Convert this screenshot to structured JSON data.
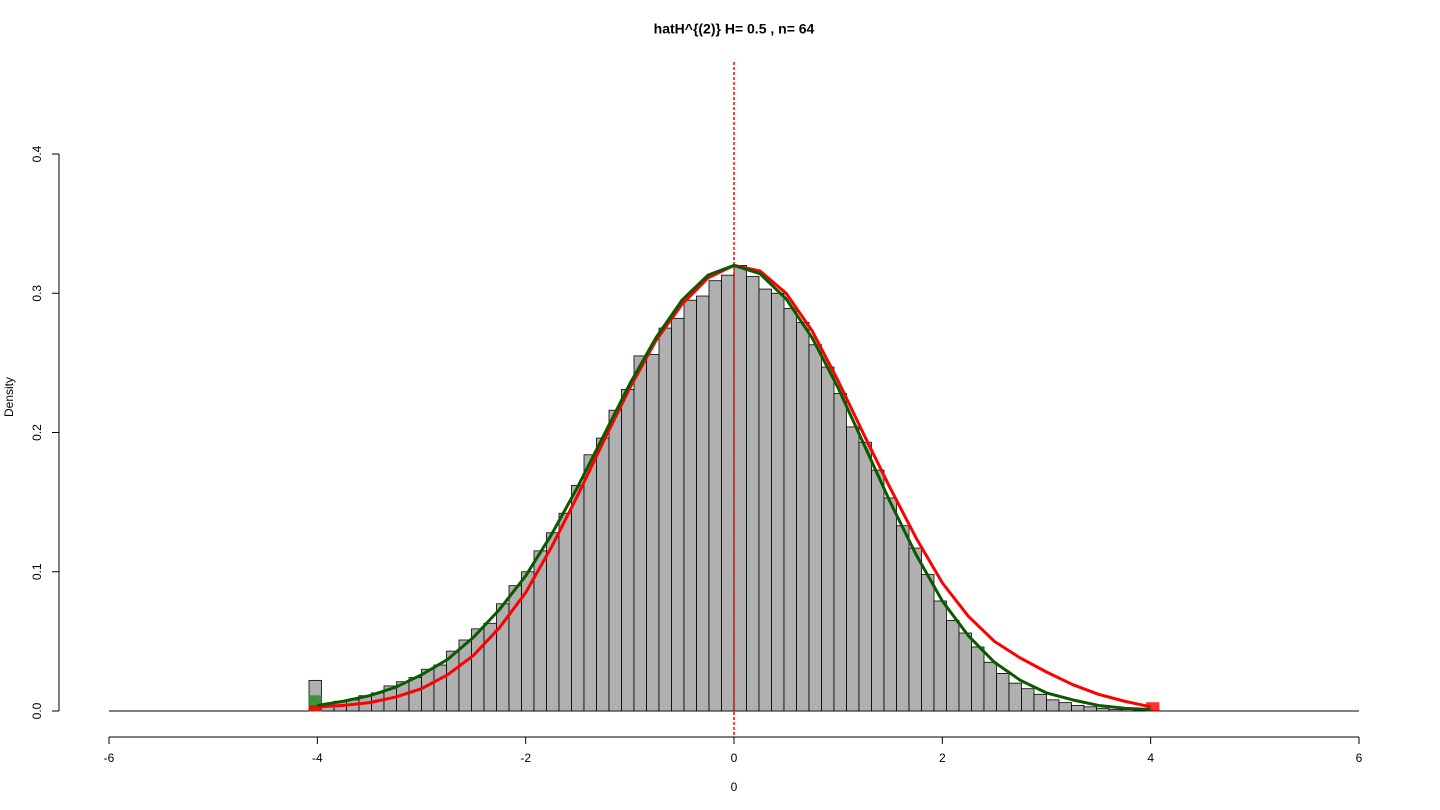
{
  "chart_data": {
    "type": "histogram",
    "title": "hatH^{(2)} H= 0.5 , n= 64",
    "xlabel": "0",
    "ylabel": "Density",
    "color": "#b0b0b0",
    "bins": [
      -4.08,
      -3.96,
      -3.84,
      -3.72,
      -3.6,
      -3.48,
      -3.36,
      -3.24,
      -3.12,
      -3.0,
      -2.88,
      -2.76,
      -2.64,
      -2.52,
      -2.4,
      -2.28,
      -2.16,
      -2.04,
      -1.92,
      -1.8,
      -1.68,
      -1.56,
      -1.44,
      -1.32,
      -1.2,
      -1.08,
      -0.96,
      -0.84,
      -0.72,
      -0.6,
      -0.48,
      -0.36,
      -0.24,
      -0.12,
      0.0,
      0.12,
      0.24,
      0.36,
      0.48,
      0.6,
      0.72,
      0.84,
      0.96,
      1.08,
      1.2,
      1.32,
      1.44,
      1.56,
      1.68,
      1.8,
      1.92,
      2.04,
      2.16,
      2.28,
      2.4,
      2.52,
      2.64,
      2.76,
      2.88,
      3.0,
      3.12,
      3.24,
      3.36,
      3.48,
      3.6,
      3.72,
      3.84,
      3.96,
      4.08
    ],
    "values": [
      0.022,
      0.004,
      0.007,
      0.008,
      0.011,
      0.013,
      0.018,
      0.021,
      0.024,
      0.03,
      0.033,
      0.043,
      0.051,
      0.059,
      0.063,
      0.077,
      0.09,
      0.1,
      0.115,
      0.128,
      0.142,
      0.162,
      0.184,
      0.196,
      0.216,
      0.231,
      0.255,
      0.256,
      0.275,
      0.282,
      0.295,
      0.298,
      0.309,
      0.313,
      0.32,
      0.312,
      0.303,
      0.3,
      0.289,
      0.279,
      0.263,
      0.247,
      0.228,
      0.204,
      0.193,
      0.173,
      0.153,
      0.133,
      0.117,
      0.098,
      0.079,
      0.065,
      0.056,
      0.046,
      0.035,
      0.027,
      0.02,
      0.016,
      0.012,
      0.008,
      0.006,
      0.004,
      0.003,
      0.002,
      0.001,
      0.001,
      0.0005,
      0.0005
    ],
    "tail_bars": [
      {
        "color": "#228b22",
        "bins": [
          -4.08,
          -3.96
        ],
        "values": [
          0.011
        ]
      },
      {
        "color": "#ff0000",
        "bins": [
          -4.08,
          -3.96
        ],
        "values": [
          0.004
        ]
      },
      {
        "color": "#ff0000",
        "bins": [
          3.96,
          4.08
        ],
        "values": [
          0.006
        ]
      }
    ],
    "series": [
      {
        "color": "#ff0000",
        "x": [
          -4,
          -3.75,
          -3.5,
          -3.25,
          -3,
          -2.75,
          -2.5,
          -2.25,
          -2,
          -1.75,
          -1.5,
          -1.25,
          -1,
          -0.75,
          -0.5,
          -0.25,
          0,
          0.25,
          0.5,
          0.75,
          1,
          1.25,
          1.5,
          1.75,
          2,
          2.25,
          2.5,
          2.75,
          3,
          3.25,
          3.5,
          3.75,
          4
        ],
        "values": [
          0.003,
          0.004,
          0.006,
          0.01,
          0.016,
          0.026,
          0.04,
          0.06,
          0.085,
          0.118,
          0.155,
          0.194,
          0.232,
          0.266,
          0.292,
          0.311,
          0.32,
          0.316,
          0.3,
          0.273,
          0.237,
          0.198,
          0.16,
          0.124,
          0.092,
          0.068,
          0.05,
          0.038,
          0.028,
          0.019,
          0.012,
          0.007,
          0.003
        ]
      },
      {
        "color": "#0b5a00",
        "x": [
          -4,
          -3.75,
          -3.5,
          -3.25,
          -3,
          -2.75,
          -2.5,
          -2.25,
          -2,
          -1.75,
          -1.5,
          -1.25,
          -1,
          -0.75,
          -0.5,
          -0.25,
          0,
          0.25,
          0.5,
          0.75,
          1,
          1.25,
          1.5,
          1.75,
          2,
          2.25,
          2.5,
          2.75,
          3,
          3.25,
          3.5,
          3.75,
          4
        ],
        "values": [
          0.004,
          0.007,
          0.011,
          0.017,
          0.026,
          0.037,
          0.053,
          0.073,
          0.097,
          0.127,
          0.161,
          0.198,
          0.235,
          0.268,
          0.295,
          0.313,
          0.32,
          0.314,
          0.296,
          0.268,
          0.232,
          0.191,
          0.15,
          0.112,
          0.079,
          0.054,
          0.035,
          0.022,
          0.013,
          0.008,
          0.004,
          0.002,
          0.001
        ]
      }
    ],
    "vline": {
      "x": 0,
      "color": "#ff0000"
    },
    "xlim": [
      -6,
      6
    ],
    "xticks": [
      -6,
      -4,
      -2,
      0,
      2,
      4,
      6
    ],
    "ylim": [
      0,
      0.4
    ],
    "yticks": [
      {
        "value": 0,
        "label": "0.0"
      },
      0.1,
      0.2,
      0.3,
      0.4
    ]
  }
}
